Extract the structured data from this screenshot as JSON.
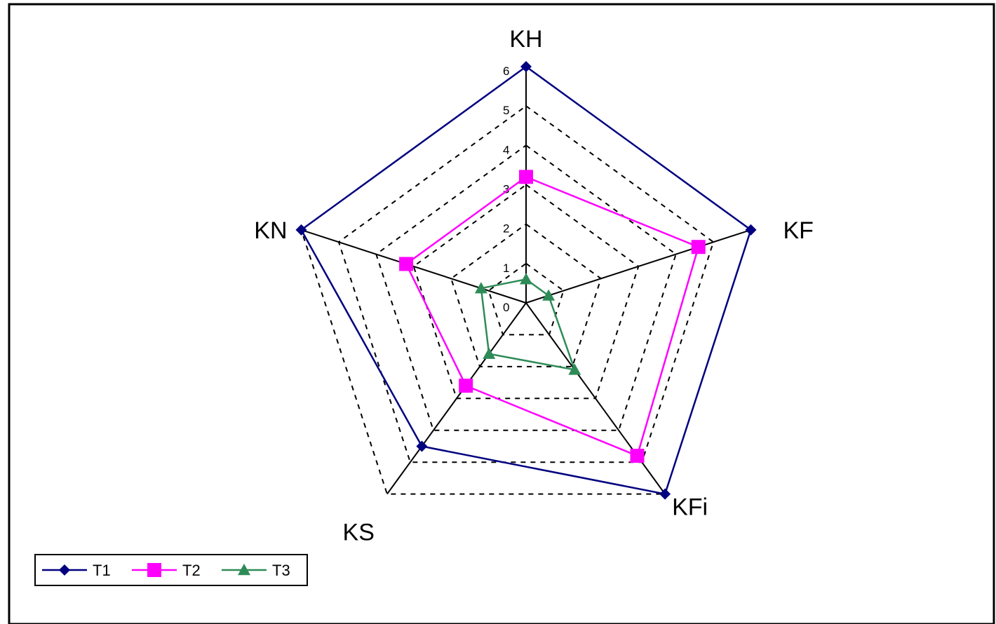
{
  "chart_data": {
    "type": "radar",
    "title": "",
    "axes": [
      "KH",
      "KF",
      "KFi",
      "KS",
      "KN"
    ],
    "rlim": [
      0,
      6
    ],
    "ticks": [
      "0",
      "1",
      "2",
      "3",
      "4",
      "5",
      "6"
    ],
    "grid": true,
    "legend_position": "bottom-left",
    "series": [
      {
        "name": "T1",
        "values": [
          6,
          6,
          6,
          4.5,
          6
        ],
        "color": "#000080",
        "marker": "diamond"
      },
      {
        "name": "T2",
        "values": [
          3.2,
          4.6,
          4.8,
          2.6,
          3.2
        ],
        "color": "#ff00ff",
        "marker": "square"
      },
      {
        "name": "T3",
        "values": [
          0.6,
          0.6,
          2.1,
          1.6,
          1.2
        ],
        "color": "#2e8b57",
        "marker": "triangle"
      }
    ]
  }
}
